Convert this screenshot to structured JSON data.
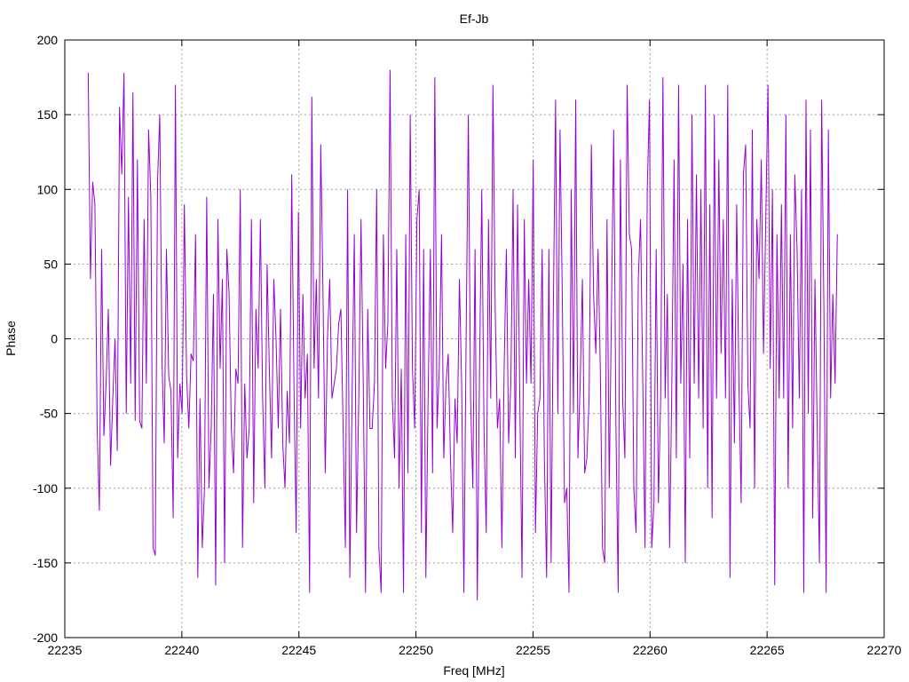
{
  "chart_data": {
    "type": "line",
    "title": "Ef-Jb",
    "xlabel": "Freq [MHz]",
    "ylabel": "Phase",
    "xlim": [
      22235,
      22270
    ],
    "ylim": [
      -200,
      200
    ],
    "xticks": [
      22235,
      22240,
      22245,
      22250,
      22255,
      22260,
      22265,
      22270
    ],
    "yticks": [
      -200,
      -150,
      -100,
      -50,
      0,
      50,
      100,
      150,
      200
    ],
    "grid": true,
    "legend": "none",
    "line_color": "#9400d3",
    "series": [
      {
        "x_start": 22236.0,
        "x_end": 22268.0,
        "values": [
          178,
          40,
          105,
          90,
          -60,
          -115,
          60,
          -65,
          -30,
          20,
          -85,
          -40,
          0,
          -75,
          155,
          110,
          178,
          -50,
          95,
          -30,
          165,
          -55,
          120,
          -55,
          -60,
          80,
          -30,
          140,
          95,
          -140,
          -145,
          105,
          150,
          -15,
          -70,
          60,
          -25,
          -35,
          -120,
          170,
          -80,
          -30,
          -50,
          90,
          -25,
          -60,
          -10,
          -15,
          70,
          -160,
          -40,
          -140,
          -100,
          95,
          -100,
          -60,
          30,
          -165,
          80,
          -20,
          40,
          -150,
          60,
          30,
          -60,
          -90,
          -20,
          -30,
          100,
          -140,
          -30,
          -80,
          -60,
          80,
          -110,
          20,
          -20,
          80,
          -40,
          -100,
          50,
          -20,
          -80,
          40,
          0,
          -60,
          20,
          -70,
          -100,
          -35,
          -70,
          110,
          -30,
          -130,
          85,
          -60,
          30,
          -40,
          -10,
          -170,
          162,
          -20,
          40,
          -40,
          130,
          30,
          -90,
          0,
          40,
          -40,
          -30,
          -20,
          10,
          20,
          -60,
          -140,
          100,
          -160,
          -40,
          70,
          -130,
          -40,
          80,
          -30,
          -170,
          20,
          -60,
          -60,
          -30,
          100,
          -140,
          -170,
          70,
          -20,
          10,
          180,
          -40,
          -80,
          60,
          -100,
          -20,
          -170,
          70,
          -90,
          150,
          -20,
          -60,
          80,
          100,
          -130,
          60,
          -160,
          -40,
          60,
          -90,
          175,
          -60,
          -20,
          70,
          -80,
          -30,
          -10,
          -80,
          -130,
          -40,
          -70,
          40,
          -30,
          -170,
          0,
          150,
          -40,
          -100,
          60,
          -175,
          -20,
          100,
          -60,
          -130,
          80,
          -40,
          170,
          20,
          -60,
          -40,
          -140,
          -20,
          60,
          -70,
          -30,
          100,
          -80,
          90,
          -40,
          -160,
          80,
          -30,
          40,
          -30,
          120,
          -130,
          -50,
          -40,
          60,
          -80,
          -160,
          60,
          -150,
          20,
          160,
          -50,
          140,
          30,
          -110,
          -100,
          -170,
          100,
          -50,
          160,
          -80,
          -30,
          40,
          -90,
          -80,
          -40,
          130,
          30,
          -10,
          60,
          -20,
          -140,
          -150,
          80,
          -100,
          20,
          140,
          -60,
          -170,
          120,
          -40,
          -80,
          170,
          70,
          60,
          -100,
          -130,
          40,
          80,
          -30,
          -140,
          100,
          160,
          -140,
          -110,
          60,
          -110,
          -40,
          175,
          -40,
          30,
          -140,
          -30,
          120,
          -80,
          170,
          -30,
          50,
          -150,
          80,
          -80,
          150,
          -30,
          110,
          -40,
          100,
          -60,
          170,
          -100,
          90,
          -120,
          150,
          -40,
          120,
          -10,
          80,
          -40,
          170,
          -160,
          40,
          -70,
          90,
          -30,
          -110,
          110,
          130,
          -30,
          -60,
          140,
          -100,
          80,
          40,
          120,
          -10,
          80,
          170,
          -20,
          100,
          -165,
          70,
          -40,
          90,
          -40,
          150,
          -100,
          70,
          -60,
          110,
          60,
          -40,
          100,
          -170,
          160,
          -50,
          140,
          -120,
          40,
          -60,
          -150,
          160,
          20,
          -170,
          140,
          -40,
          30,
          -30,
          70
        ]
      }
    ]
  }
}
